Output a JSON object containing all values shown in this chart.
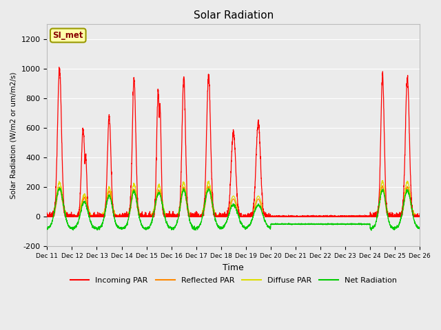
{
  "title": "Solar Radiation",
  "ylabel": "Solar Radiation (W/m2 or um/m2/s)",
  "xlabel": "Time",
  "ylim": [
    -200,
    1300
  ],
  "yticks": [
    -200,
    0,
    200,
    400,
    600,
    800,
    1000,
    1200
  ],
  "station_label": "SI_met",
  "bg_color": "#ebebeb",
  "grid_color": "#ffffff",
  "colors": {
    "incoming": "#ff0000",
    "reflected": "#ff8800",
    "diffuse": "#dddd00",
    "net": "#00cc00"
  },
  "legend_entries": [
    "Incoming PAR",
    "Reflected PAR",
    "Diffuse PAR",
    "Net Radiation"
  ],
  "xtick_labels": [
    "Dec 11",
    "Dec 12",
    "Dec 13",
    "Dec 14",
    "Dec 15",
    "Dec 16",
    "Dec 17",
    "Dec 18",
    "Dec 19",
    "Dec 20",
    "Dec 21",
    "Dec 22",
    "Dec 23",
    "Dec 24",
    "Dec 25",
    "Dec 26"
  ]
}
